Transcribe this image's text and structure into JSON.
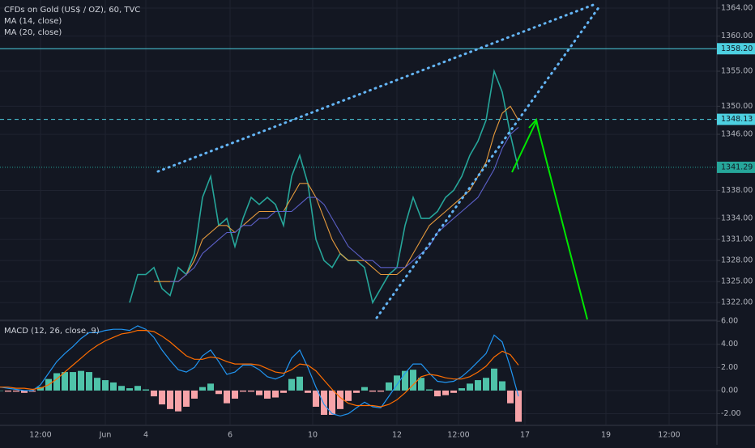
{
  "chart_data": [
    {
      "type": "line",
      "title": "CFDs on Gold (US$ / OZ), 60, TVC",
      "ylim": [
        1319.6,
        1365.15
      ],
      "yticks": [
        {
          "value": 1364,
          "label": "1364.00"
        },
        {
          "value": 1360,
          "label": "1360.00"
        },
        {
          "value": 1355,
          "label": "1355.00"
        },
        {
          "value": 1350,
          "label": "1350.00"
        },
        {
          "value": 1346,
          "label": "1346.00"
        },
        {
          "value": 1338,
          "label": "1338.00"
        },
        {
          "value": 1334,
          "label": "1334.00"
        },
        {
          "value": 1331,
          "label": "1331.00"
        },
        {
          "value": 1328,
          "label": "1328.00"
        },
        {
          "value": 1325,
          "label": "1325.00"
        },
        {
          "value": 1322,
          "label": "1322.00"
        }
      ],
      "grid": true,
      "series": [
        {
          "color": "#26a69a",
          "values": [
            1322,
            1326,
            1326,
            1327,
            1324,
            1323,
            1327,
            1326,
            1329,
            1337,
            1340,
            1333,
            1334,
            1330,
            1334,
            1337,
            1336,
            1337,
            1336,
            1333,
            1340,
            1343,
            1339,
            1331,
            1328,
            1327,
            1329,
            1328,
            1328,
            1327,
            1322,
            1324,
            1326,
            1327,
            1333,
            1337,
            1334,
            1334,
            1335,
            1337,
            1338,
            1340,
            1343,
            1345,
            1348,
            1355,
            1352,
            1346,
            1341
          ]
        },
        {
          "name": "MA (14, close)",
          "color": "#e69a3c",
          "values": [
            null,
            null,
            null,
            1325,
            1325,
            1325,
            1325,
            1326,
            1328,
            1331,
            1332,
            1333,
            1333,
            1332,
            1333,
            1334,
            1335,
            1335,
            1335,
            1335,
            1337,
            1339,
            1339,
            1337,
            1334,
            1331,
            1329,
            1328,
            1328,
            1328,
            1327,
            1326,
            1326,
            1326,
            1327,
            1329,
            1331,
            1333,
            1334,
            1335,
            1336,
            1337,
            1338,
            1340,
            1342,
            1346,
            1349,
            1350,
            1348
          ]
        },
        {
          "name": "MA (20, close)",
          "color": "#5b5fc7",
          "values": [
            null,
            null,
            null,
            null,
            null,
            1325,
            1325,
            1326,
            1327,
            1329,
            1330,
            1331,
            1332,
            1332,
            1333,
            1333,
            1334,
            1334,
            1335,
            1335,
            1335,
            1336,
            1337,
            1337,
            1336,
            1334,
            1332,
            1330,
            1329,
            1328,
            1328,
            1327,
            1327,
            1327,
            1327,
            1328,
            1329,
            1330,
            1332,
            1333,
            1334,
            1335,
            1336,
            1337,
            1339,
            1341,
            1344,
            1346,
            1347
          ]
        }
      ],
      "levels": [
        {
          "value": 1358.2,
          "label": "1358.20",
          "color": "#4dd0e1",
          "style": "solid"
        },
        {
          "value": 1348.13,
          "color": "#4dd0e1",
          "style": "dashed"
        },
        {
          "value": 1341.29,
          "color": "#26a69a",
          "style": "dotted"
        }
      ]
    },
    {
      "type": "macd",
      "title": "MACD (12, 26, close, 9)",
      "ylim": [
        -2.94,
        6.01
      ],
      "yticks": [
        {
          "value": 6,
          "label": "6.00"
        },
        {
          "value": 4,
          "label": "4.00"
        },
        {
          "value": 2,
          "label": "2.00"
        },
        {
          "value": 0,
          "label": "0.00"
        },
        {
          "value": -2,
          "label": "-2.00"
        }
      ],
      "grid": true,
      "x_labels": [
        "12:00",
        "Jun",
        "4",
        "6",
        "10",
        "12",
        "12:00",
        "17",
        "19",
        "12:00"
      ],
      "series": [
        {
          "kind": "bar",
          "color": "#4fc3a9",
          "negative_color": "#f7a3a8",
          "values": [
            0,
            -0.1,
            -0.1,
            -0.2,
            -0.1,
            0.3,
            1.0,
            1.5,
            1.6,
            1.6,
            1.7,
            1.6,
            1.1,
            0.9,
            0.7,
            0.4,
            0.2,
            0.4,
            0.1,
            -0.5,
            -1.2,
            -1.6,
            -1.8,
            -1.4,
            -0.7,
            0.3,
            0.6,
            -0.3,
            -1.1,
            -0.7,
            -0.1,
            -0.1,
            -0.4,
            -0.7,
            -0.6,
            -0.2,
            1.0,
            1.2,
            -0.2,
            -1.4,
            -2.1,
            -2.1,
            -1.6,
            -0.9,
            -0.2,
            0.3,
            -0.1,
            -0.1,
            0.7,
            1.3,
            1.7,
            1.8,
            1.1,
            0.1,
            -0.5,
            -0.4,
            -0.2,
            0.2,
            0.6,
            0.9,
            1.1,
            1.9,
            0.8,
            -1.1,
            -2.7
          ]
        },
        {
          "kind": "line",
          "color": "#2196f3",
          "values": [
            0.3,
            0.2,
            0.1,
            0,
            0,
            0.5,
            1.5,
            2.5,
            3.2,
            3.8,
            4.5,
            5.0,
            5.0,
            5.2,
            5.3,
            5.3,
            5.2,
            5.6,
            5.3,
            4.6,
            3.5,
            2.6,
            1.8,
            1.6,
            2.0,
            3.0,
            3.5,
            2.5,
            1.4,
            1.6,
            2.2,
            2.2,
            1.8,
            1.2,
            1.0,
            1.3,
            2.8,
            3.5,
            2.0,
            0.3,
            -1.2,
            -2.0,
            -2.2,
            -2.0,
            -1.5,
            -1.0,
            -1.4,
            -1.5,
            -0.5,
            0.5,
            1.5,
            2.3,
            2.3,
            1.5,
            0.8,
            0.7,
            0.8,
            1.2,
            1.8,
            2.5,
            3.2,
            4.8,
            4.2,
            2.0,
            -0.5
          ]
        },
        {
          "kind": "line",
          "color": "#ff6d00",
          "values": [
            0.3,
            0.3,
            0.2,
            0.2,
            0.1,
            0.2,
            0.5,
            1.0,
            1.6,
            2.2,
            2.8,
            3.4,
            3.9,
            4.3,
            4.6,
            4.9,
            5.0,
            5.2,
            5.2,
            5.1,
            4.7,
            4.2,
            3.6,
            3.0,
            2.7,
            2.7,
            2.9,
            2.8,
            2.5,
            2.3,
            2.3,
            2.3,
            2.2,
            1.9,
            1.6,
            1.5,
            1.8,
            2.3,
            2.2,
            1.7,
            0.9,
            0.1,
            -0.6,
            -1.1,
            -1.3,
            -1.3,
            -1.3,
            -1.4,
            -1.2,
            -0.8,
            -0.2,
            0.5,
            1.2,
            1.4,
            1.3,
            1.1,
            1.0,
            1.0,
            1.2,
            1.6,
            2.1,
            2.9,
            3.4,
            3.1,
            2.2
          ]
        }
      ]
    }
  ]
}
